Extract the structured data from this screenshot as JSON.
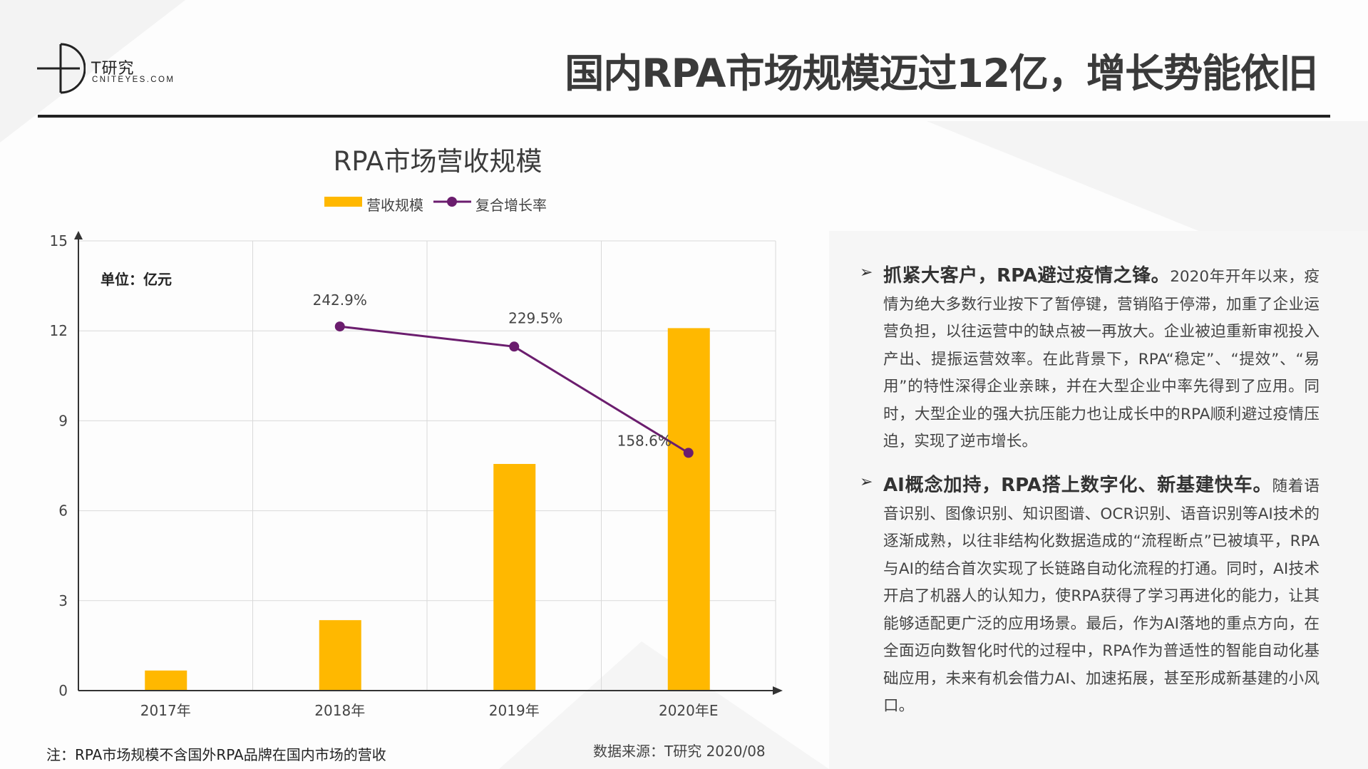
{
  "header": {
    "logo_cn": "T研究",
    "logo_en": "CNITEYES.COM",
    "title": "国内RPA市场规模迈过12亿，增长势能依旧"
  },
  "chart_data": {
    "type": "bar+line",
    "title": "RPA市场营收规模",
    "unit_label": "单位：亿元",
    "categories": [
      "2017年",
      "2018年",
      "2019年",
      "2020年E"
    ],
    "ylim": [
      0,
      15
    ],
    "yticks": [
      "0",
      "3",
      "6",
      "9",
      "12",
      "15"
    ],
    "grid": true,
    "legend_position": "top",
    "series": [
      {
        "name": "营收规模",
        "type": "bar",
        "color": "#FFB800",
        "values": [
          0.67,
          2.35,
          7.56,
          12.09
        ]
      },
      {
        "name": "复合增长率",
        "type": "line",
        "color": "#6B1D6E",
        "values": [
          null,
          242.9,
          229.5,
          158.6
        ],
        "labels": [
          "",
          "242.9%",
          "229.5%",
          "158.6%"
        ],
        "secondary_ylim": [
          0,
          300
        ]
      }
    ]
  },
  "footer": {
    "note": "注：RPA市场规模不含国外RPA品牌在国内市场的营收",
    "source": "数据来源：T研究 2020/08"
  },
  "bullets": [
    {
      "heading": "抓紧大客户，RPA避过疫情之锋。",
      "body": "2020年开年以来，疫情为绝大多数行业按下了暂停键，营销陷于停滞，加重了企业运营负担，以往运营中的缺点被一再放大。企业被迫重新审视投入产出、提振运营效率。在此背景下，RPA“稳定”、“提效”、“易用”的特性深得企业亲睐，并在大型企业中率先得到了应用。同时，大型企业的强大抗压能力也让成长中的RPA顺利避过疫情压迫，实现了逆市增长。"
    },
    {
      "heading": "AI概念加持，RPA搭上数字化、新基建快车。",
      "body": "随着语音识别、图像识别、知识图谱、OCR识别、语音识别等AI技术的逐渐成熟，以往非结构化数据造成的“流程断点”已被填平，RPA与AI的结合首次实现了长链路自动化流程的打通。同时，AI技术开启了机器人的认知力，使RPA获得了学习再进化的能力，让其能够适配更广泛的应用场景。最后，作为AI落地的重点方向，在全面迈向数智化时代的过程中，RPA作为普适性的智能自动化基础应用，未来有机会借力AI、加速拓展，甚至形成新基建的小风口。"
    }
  ]
}
